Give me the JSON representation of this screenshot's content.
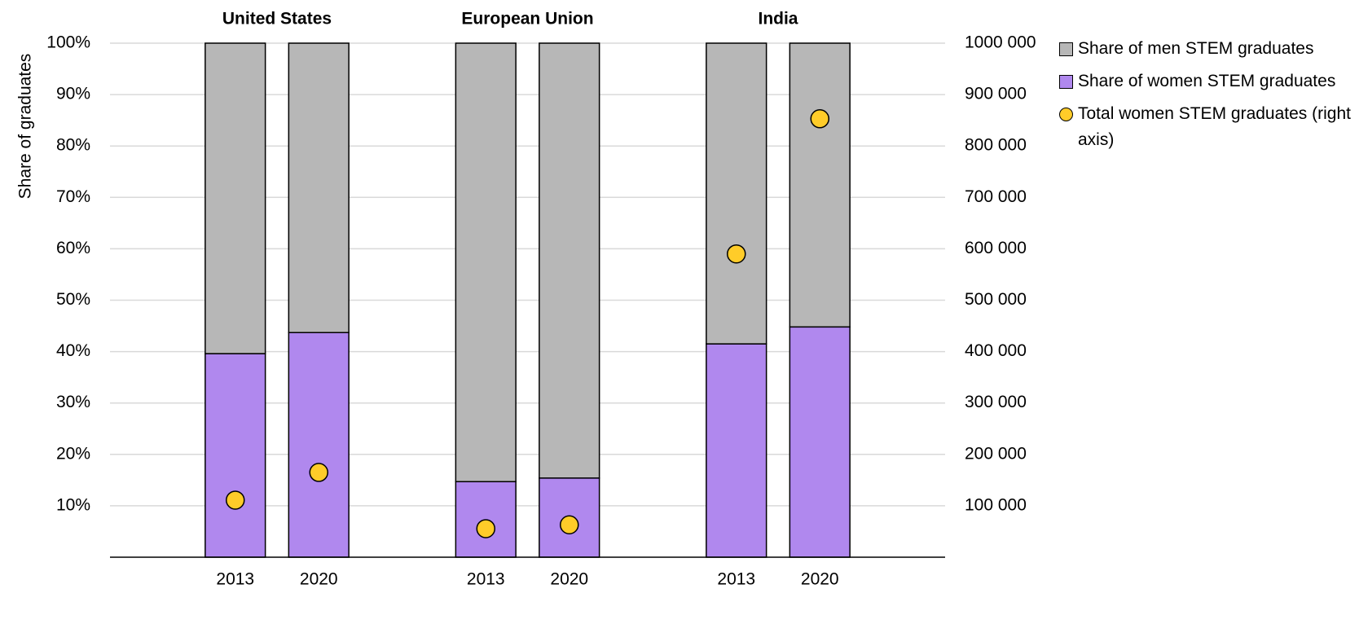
{
  "chart_data": {
    "type": "bar",
    "groups": [
      "United States",
      "European Union",
      "India"
    ],
    "categories": [
      null,
      "2013",
      "2020",
      null,
      "2013",
      "2020",
      null,
      "2013",
      "2020",
      null
    ],
    "ylabel": "Share of graduates",
    "ylim": [
      0,
      100
    ],
    "yticks": [
      {
        "value": 10,
        "label": "10%"
      },
      {
        "value": 20,
        "label": "20%"
      },
      {
        "value": 30,
        "label": "30%"
      },
      {
        "value": 40,
        "label": "40%"
      },
      {
        "value": 50,
        "label": "50%"
      },
      {
        "value": 60,
        "label": "60%"
      },
      {
        "value": 70,
        "label": "70%"
      },
      {
        "value": 80,
        "label": "80%"
      },
      {
        "value": 90,
        "label": "90%"
      },
      {
        "value": 100,
        "label": "100%"
      }
    ],
    "y2lim": [
      0,
      1000000
    ],
    "y2ticks": [
      {
        "value": 100000,
        "label": "100 000"
      },
      {
        "value": 200000,
        "label": "200 000"
      },
      {
        "value": 300000,
        "label": "300 000"
      },
      {
        "value": 400000,
        "label": "400 000"
      },
      {
        "value": 500000,
        "label": "500 000"
      },
      {
        "value": 600000,
        "label": "600 000"
      },
      {
        "value": 700000,
        "label": "700 000"
      },
      {
        "value": 800000,
        "label": "800 000"
      },
      {
        "value": 900000,
        "label": "900 000"
      },
      {
        "value": 1000000,
        "label": "1000 000"
      }
    ],
    "grid": true,
    "legend": "right",
    "series": [
      {
        "name": "Share of men STEM graduates",
        "color": "#b7b7b7",
        "values": [
          null,
          60.4,
          56.3,
          null,
          85.3,
          84.6,
          null,
          58.5,
          55.2,
          null
        ]
      },
      {
        "name": "Share of women STEM graduates",
        "color": "#b088ee",
        "values": [
          null,
          39.6,
          43.7,
          null,
          14.7,
          15.4,
          null,
          41.5,
          44.8,
          null
        ]
      },
      {
        "name": "Total women STEM graduates (right axis)",
        "color": "#ffcc29",
        "type": "scatter",
        "axis": "y2",
        "values": [
          null,
          111000,
          165000,
          null,
          55500,
          63000,
          null,
          590000,
          853000,
          null
        ]
      }
    ]
  }
}
